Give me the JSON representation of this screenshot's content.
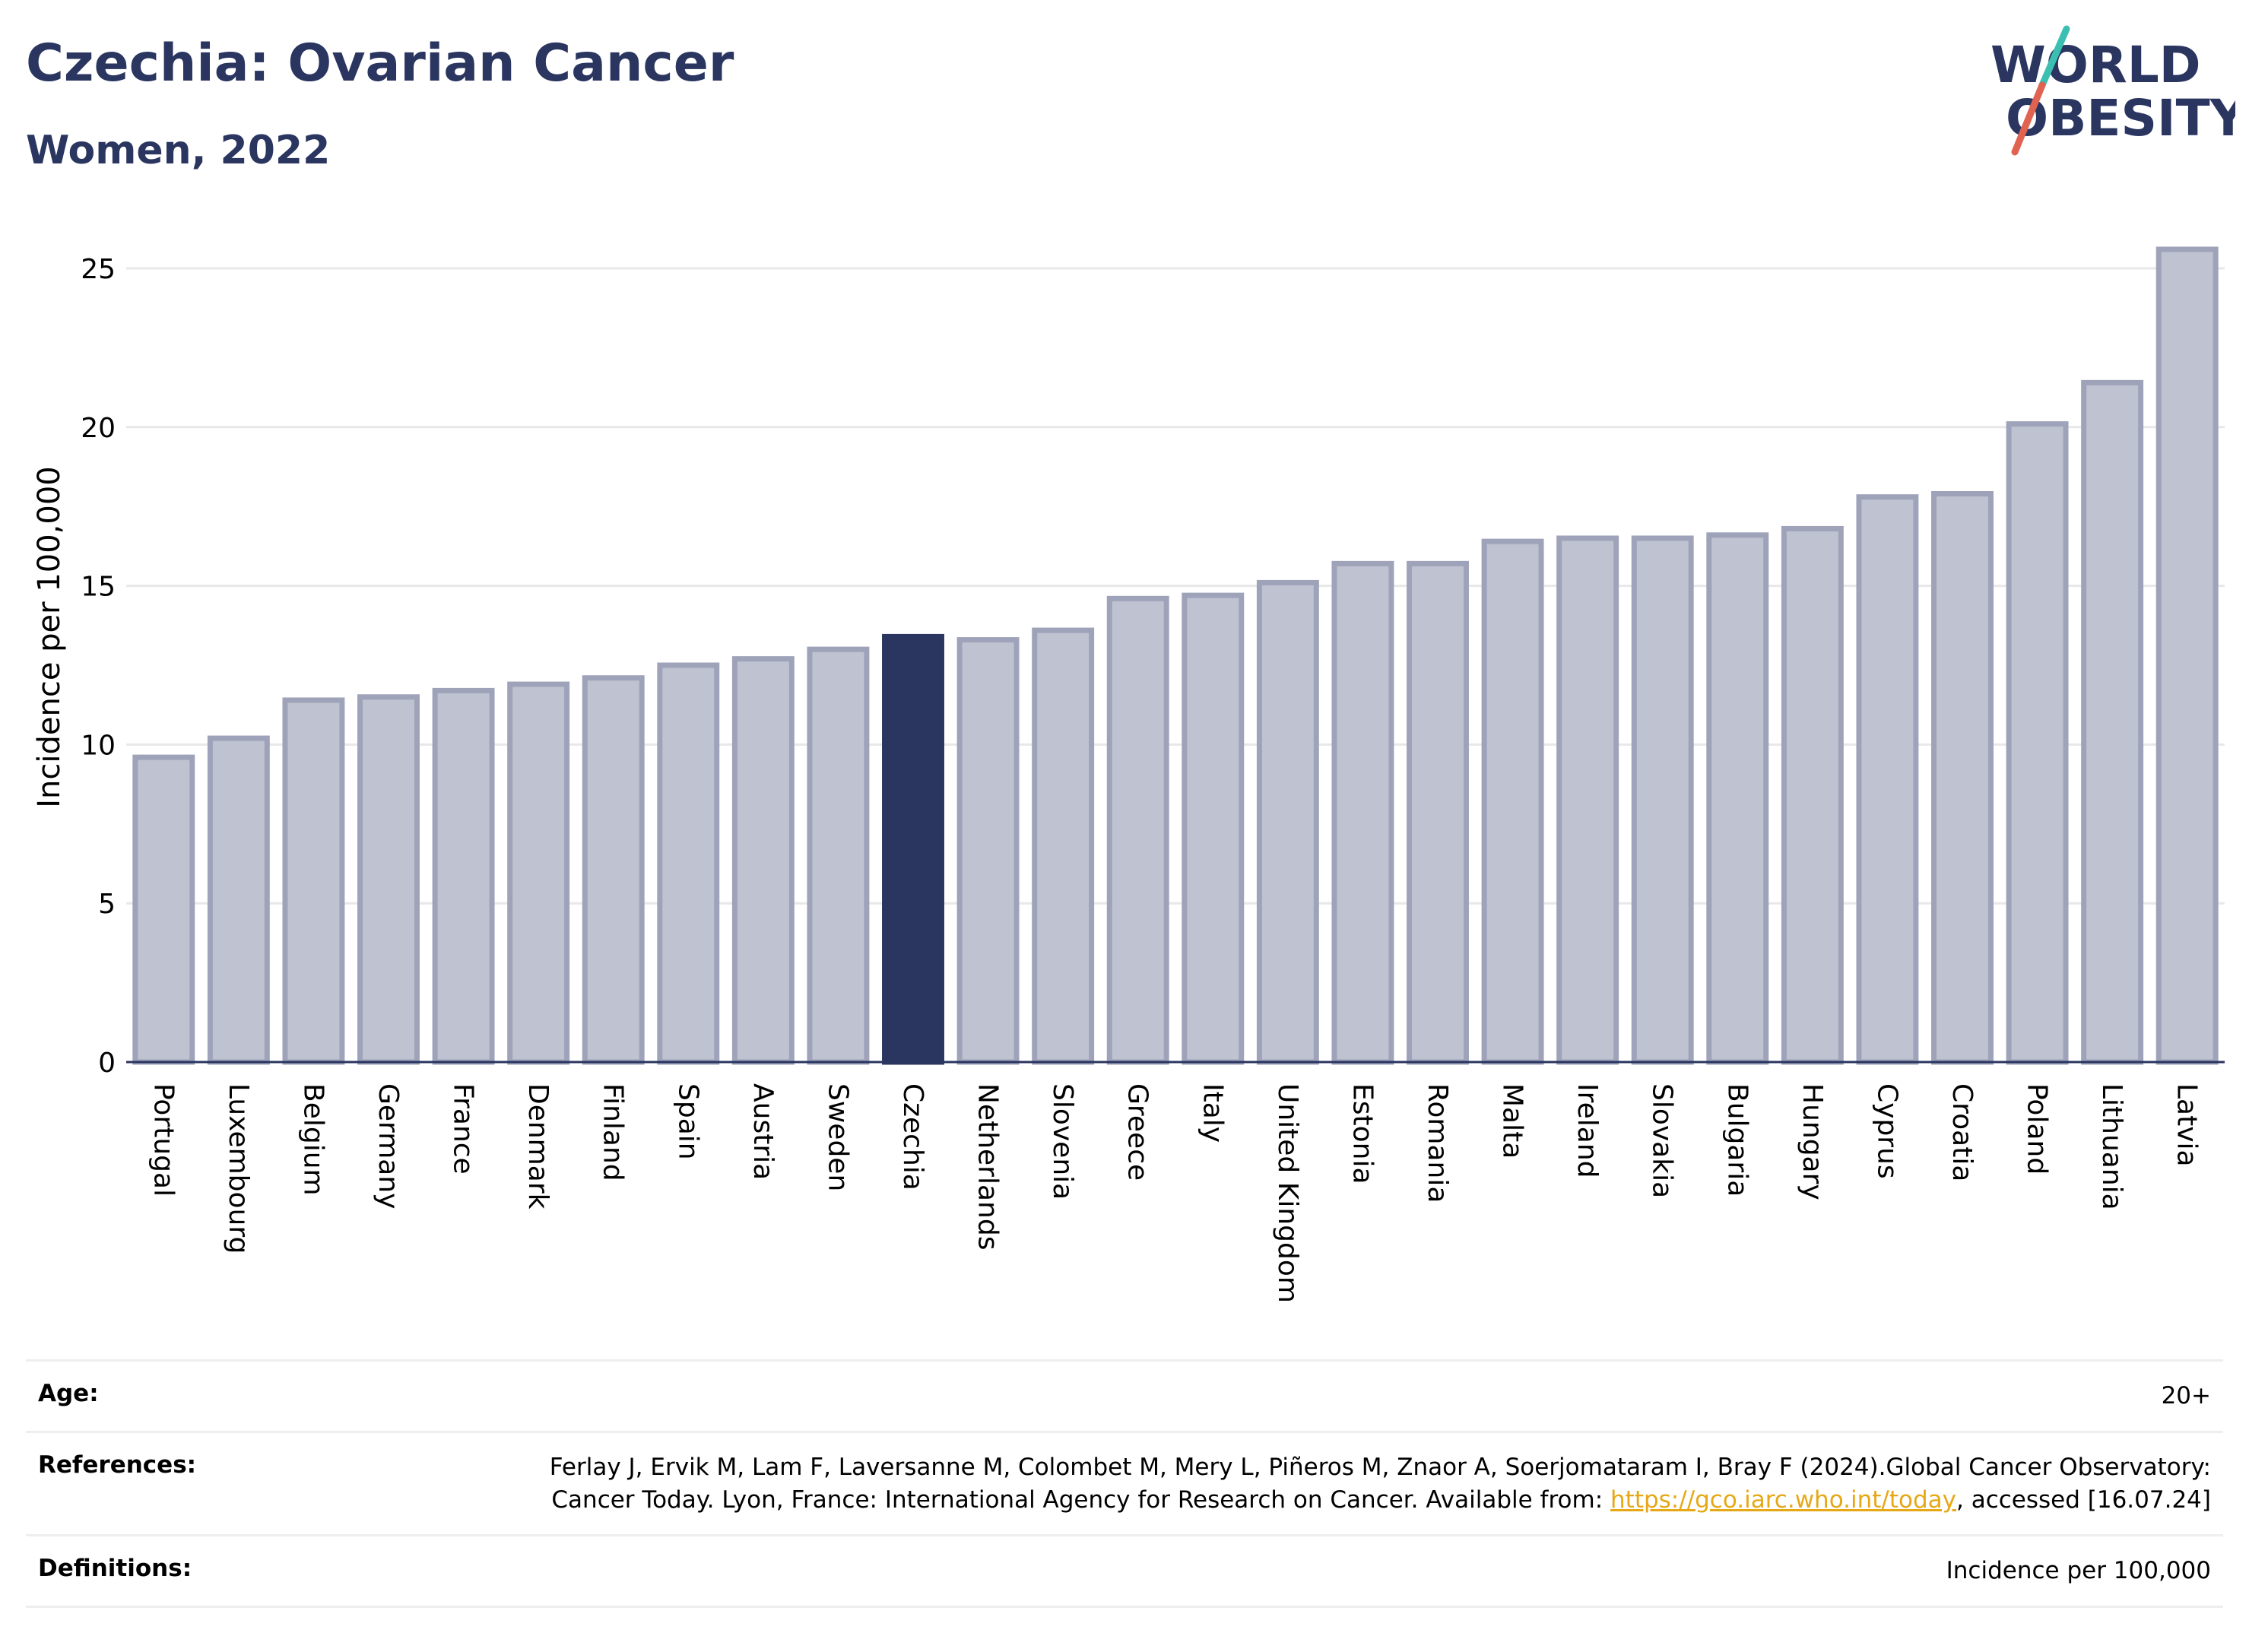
{
  "header": {
    "title": "Czechia: Ovarian Cancer",
    "subtitle": "Women, 2022",
    "logo_line1": "WORLD",
    "logo_line2": "OBESITY"
  },
  "chart_data": {
    "type": "bar",
    "title": "Czechia: Ovarian Cancer",
    "subtitle": "Women, 2022",
    "xlabel": "",
    "ylabel": "Incidence per 100,000",
    "ylim": [
      0,
      26.5
    ],
    "yticks": [
      0,
      5,
      10,
      15,
      20,
      25
    ],
    "grid": true,
    "highlight": "Czechia",
    "categories": [
      "Portugal",
      "Luxembourg",
      "Belgium",
      "Germany",
      "France",
      "Denmark",
      "Finland",
      "Spain",
      "Austria",
      "Sweden",
      "Czechia",
      "Netherlands",
      "Slovenia",
      "Greece",
      "Italy",
      "United Kingdom",
      "Estonia",
      "Romania",
      "Malta",
      "Ireland",
      "Slovakia",
      "Bulgaria",
      "Hungary",
      "Cyprus",
      "Croatia",
      "Poland",
      "Lithuania",
      "Latvia"
    ],
    "values": [
      9.6,
      10.2,
      11.4,
      11.5,
      11.7,
      11.9,
      12.1,
      12.5,
      12.7,
      13.0,
      13.4,
      13.3,
      13.6,
      14.6,
      14.7,
      15.1,
      15.7,
      15.7,
      16.4,
      16.5,
      16.5,
      16.6,
      16.8,
      17.8,
      17.9,
      20.1,
      21.4,
      25.6
    ]
  },
  "colors": {
    "bar": "#bfc2d0",
    "bar_border": "#9ea3ba",
    "highlight": "#2a3560",
    "accent_teal": "#3bbfb0",
    "accent_red": "#e06352"
  },
  "meta": {
    "age_label": "Age:",
    "age_value": "20+",
    "references_label": "References:",
    "references_text": "Ferlay J, Ervik M, Lam F, Laversanne M, Colombet M, Mery L, Piñeros M, Znaor A, Soerjomataram I, Bray F (2024).Global Cancer Observatory: Cancer Today. Lyon, France: International Agency for Research on Cancer. Available from:",
    "references_link": "https://gco.iarc.who.int/today",
    "references_suffix": ", accessed [16.07.24]",
    "definitions_label": "Definitions:",
    "definitions_value": "Incidence per 100,000"
  }
}
